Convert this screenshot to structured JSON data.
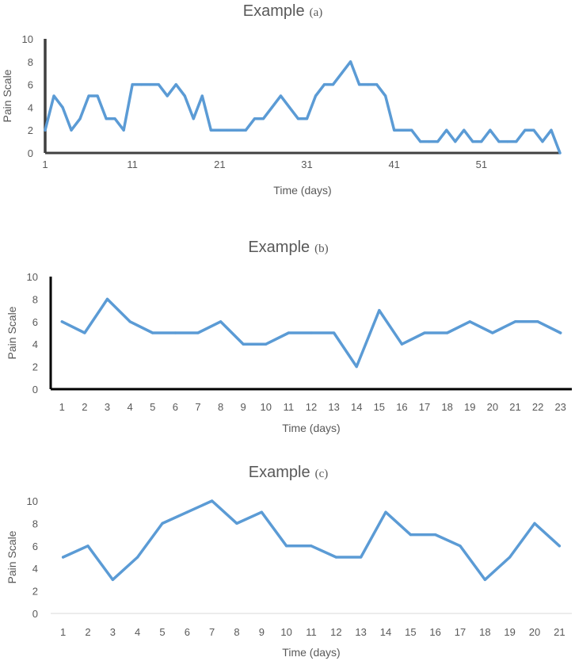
{
  "colors": {
    "series": "#5B9BD5",
    "text": "#595959",
    "axis_dark": "#404040",
    "axis_light": "#D9D9D9"
  },
  "chart_data": [
    {
      "id": "a",
      "type": "line",
      "title": "Example",
      "title_suffix": "(a)",
      "xlabel": "Time (days)",
      "ylabel": "Pain Scale",
      "ylim": [
        0,
        10
      ],
      "yticks": [
        0,
        2,
        4,
        6,
        8,
        10
      ],
      "x_tick_labels": [
        "1",
        "11",
        "21",
        "31",
        "41",
        "51"
      ],
      "x": [
        1,
        2,
        3,
        4,
        5,
        6,
        7,
        8,
        9,
        10,
        11,
        12,
        13,
        14,
        15,
        16,
        17,
        18,
        19,
        20,
        21,
        22,
        23,
        24,
        25,
        26,
        27,
        28,
        29,
        30,
        31,
        32,
        33,
        34,
        35,
        36,
        37,
        38,
        39,
        40,
        41,
        42,
        43,
        44,
        45,
        46,
        47,
        48,
        49,
        50,
        51,
        52,
        53,
        54,
        55,
        56,
        57,
        58,
        59,
        60
      ],
      "series": [
        {
          "name": "Pain Scale",
          "values": [
            2,
            5,
            4,
            2,
            3,
            5,
            5,
            3,
            3,
            2,
            6,
            6,
            6,
            6,
            5,
            6,
            5,
            3,
            5,
            2,
            2,
            2,
            2,
            2,
            3,
            3,
            4,
            5,
            4,
            3,
            3,
            5,
            6,
            6,
            7,
            8,
            6,
            6,
            6,
            5,
            2,
            2,
            2,
            1,
            1,
            1,
            2,
            1,
            2,
            1,
            1,
            2,
            1,
            1,
            1,
            2,
            2,
            1,
            2,
            0
          ]
        }
      ]
    },
    {
      "id": "b",
      "type": "line",
      "title": "Example",
      "title_suffix": "(b)",
      "xlabel": "Time (days)",
      "ylabel": "Pain Scale",
      "ylim": [
        0,
        10
      ],
      "yticks": [
        0,
        2,
        4,
        6,
        8,
        10
      ],
      "categories": [
        "1",
        "2",
        "3",
        "4",
        "5",
        "6",
        "7",
        "8",
        "9",
        "10",
        "11",
        "12",
        "13",
        "14",
        "15",
        "16",
        "17",
        "18",
        "19",
        "20",
        "21",
        "22",
        "23"
      ],
      "series": [
        {
          "name": "Pain Scale",
          "values": [
            6,
            5,
            8,
            6,
            5,
            5,
            5,
            6,
            4,
            4,
            5,
            5,
            5,
            2,
            7,
            4,
            5,
            5,
            6,
            5,
            6,
            6,
            5
          ]
        }
      ]
    },
    {
      "id": "c",
      "type": "line",
      "title": "Example",
      "title_suffix": "(c)",
      "xlabel": "Time (days)",
      "ylabel": "Pain Scale",
      "ylim": [
        0,
        10
      ],
      "yticks": [
        0,
        2,
        4,
        6,
        8,
        10
      ],
      "categories": [
        "1",
        "2",
        "3",
        "4",
        "5",
        "6",
        "7",
        "8",
        "9",
        "10",
        "11",
        "12",
        "13",
        "14",
        "15",
        "16",
        "17",
        "18",
        "19",
        "20",
        "21"
      ],
      "series": [
        {
          "name": "Pain Scale",
          "values": [
            5,
            6,
            3,
            5,
            8,
            9,
            10,
            8,
            9,
            6,
            6,
            5,
            5,
            9,
            7,
            7,
            6,
            3,
            5,
            8,
            6
          ]
        }
      ]
    }
  ]
}
